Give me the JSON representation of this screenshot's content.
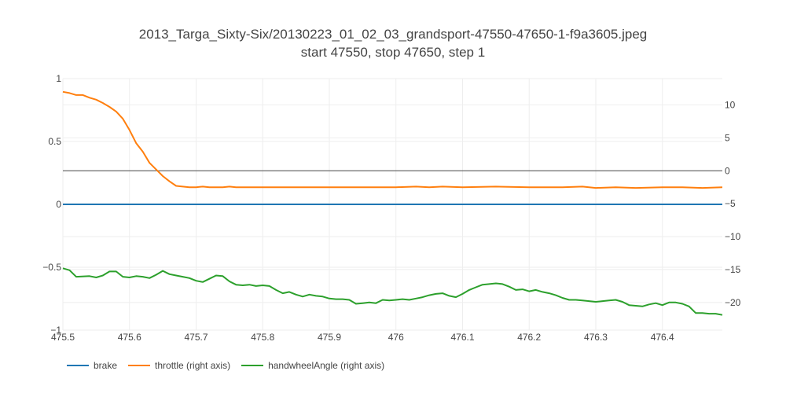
{
  "title": {
    "line1": "2013_Targa_Sixty-Six/20130223_01_02_03_grandsport-47550-47650-1-f9a3605.jpeg",
    "line2": "start 47550, stop 47650, step 1"
  },
  "chart_data": {
    "type": "line",
    "x_ticks": [
      "475.5",
      "475.6",
      "475.7",
      "475.8",
      "475.9",
      "476",
      "476.1",
      "476.2",
      "476.3",
      "476.4"
    ],
    "y_left_ticks": [
      "1",
      "0.5",
      "0",
      "−0.5",
      "−1"
    ],
    "y_right_ticks": [
      "10",
      "5",
      "0",
      "−5",
      "−10",
      "−15",
      "−20"
    ],
    "xlim": [
      475.5,
      476.49
    ],
    "ylim_left": [
      -1,
      1
    ],
    "ylim_right": [
      -24.2,
      14
    ],
    "grid": true,
    "legend_position": "bottom-left",
    "series": [
      {
        "name": "brake",
        "axis": "left",
        "color": "#1f77b4",
        "x": [
          475.5,
          476.49
        ],
        "y": [
          0,
          0
        ]
      },
      {
        "name": "throttle (right axis)",
        "axis": "right",
        "color": "#ff7f0e",
        "x": [
          475.5,
          475.51,
          475.52,
          475.53,
          475.54,
          475.55,
          475.56,
          475.57,
          475.58,
          475.59,
          475.6,
          475.61,
          475.62,
          475.63,
          475.64,
          475.65,
          475.66,
          475.67,
          475.68,
          475.69,
          475.7,
          475.71,
          475.72,
          475.73,
          475.74,
          475.75,
          475.76,
          475.78,
          475.8,
          475.85,
          475.9,
          475.95,
          476.0,
          476.03,
          476.05,
          476.07,
          476.1,
          476.15,
          476.2,
          476.25,
          476.28,
          476.3,
          476.33,
          476.36,
          476.4,
          476.43,
          476.46,
          476.49
        ],
        "y": [
          12.0,
          11.8,
          11.5,
          11.5,
          11.1,
          10.8,
          10.3,
          9.7,
          9.0,
          7.9,
          6.2,
          4.2,
          2.9,
          1.2,
          0.2,
          -0.8,
          -1.6,
          -2.3,
          -2.4,
          -2.5,
          -2.5,
          -2.4,
          -2.5,
          -2.5,
          -2.5,
          -2.4,
          -2.5,
          -2.5,
          -2.5,
          -2.5,
          -2.5,
          -2.5,
          -2.5,
          -2.4,
          -2.5,
          -2.4,
          -2.5,
          -2.4,
          -2.5,
          -2.5,
          -2.4,
          -2.6,
          -2.5,
          -2.6,
          -2.5,
          -2.5,
          -2.6,
          -2.5
        ]
      },
      {
        "name": "handwheelAngle (right axis)",
        "axis": "right",
        "color": "#2ca02c",
        "x": [
          475.5,
          475.51,
          475.52,
          475.54,
          475.55,
          475.56,
          475.57,
          475.58,
          475.59,
          475.6,
          475.61,
          475.62,
          475.63,
          475.64,
          475.65,
          475.66,
          475.67,
          475.68,
          475.69,
          475.7,
          475.71,
          475.72,
          475.73,
          475.74,
          475.75,
          475.76,
          475.77,
          475.78,
          475.79,
          475.8,
          475.81,
          475.82,
          475.83,
          475.84,
          475.85,
          475.86,
          475.87,
          475.88,
          475.89,
          475.9,
          475.91,
          475.92,
          475.93,
          475.94,
          475.95,
          475.96,
          475.97,
          475.98,
          475.99,
          476.0,
          476.01,
          476.02,
          476.03,
          476.04,
          476.05,
          476.06,
          476.07,
          476.08,
          476.09,
          476.1,
          476.11,
          476.12,
          476.13,
          476.14,
          476.15,
          476.16,
          476.17,
          476.18,
          476.19,
          476.2,
          476.21,
          476.22,
          476.23,
          476.24,
          476.25,
          476.26,
          476.27,
          476.28,
          476.29,
          476.3,
          476.31,
          476.32,
          476.33,
          476.34,
          476.35,
          476.36,
          476.37,
          476.38,
          476.39,
          476.4,
          476.41,
          476.42,
          476.43,
          476.44,
          476.45,
          476.46,
          476.47,
          476.48,
          476.49
        ],
        "y": [
          -14.8,
          -15.1,
          -16.1,
          -16.0,
          -16.2,
          -15.9,
          -15.3,
          -15.3,
          -16.1,
          -16.2,
          -16.0,
          -16.1,
          -16.3,
          -15.8,
          -15.2,
          -15.7,
          -15.9,
          -16.1,
          -16.3,
          -16.7,
          -16.9,
          -16.4,
          -15.9,
          -16.0,
          -16.8,
          -17.3,
          -17.4,
          -17.3,
          -17.5,
          -17.4,
          -17.5,
          -18.1,
          -18.6,
          -18.4,
          -18.8,
          -19.1,
          -18.8,
          -19.0,
          -19.1,
          -19.4,
          -19.5,
          -19.5,
          -19.6,
          -20.2,
          -20.1,
          -20.0,
          -20.1,
          -19.6,
          -19.7,
          -19.6,
          -19.5,
          -19.6,
          -19.4,
          -19.2,
          -18.9,
          -18.7,
          -18.6,
          -19.0,
          -19.2,
          -18.7,
          -18.1,
          -17.7,
          -17.3,
          -17.2,
          -17.1,
          -17.2,
          -17.6,
          -18.1,
          -18.0,
          -18.3,
          -18.1,
          -18.4,
          -18.6,
          -18.9,
          -19.3,
          -19.6,
          -19.6,
          -19.7,
          -19.8,
          -19.9,
          -19.8,
          -19.7,
          -19.6,
          -19.9,
          -20.4,
          -20.5,
          -20.6,
          -20.3,
          -20.1,
          -20.4,
          -20.0,
          -20.0,
          -20.2,
          -20.6,
          -21.6,
          -21.6,
          -21.7,
          -21.7,
          -21.9
        ]
      }
    ]
  },
  "legend": {
    "items": [
      {
        "label": "brake",
        "color": "#1f77b4"
      },
      {
        "label": "throttle (right axis)",
        "color": "#ff7f0e"
      },
      {
        "label": "handwheelAngle (right axis)",
        "color": "#2ca02c"
      }
    ]
  }
}
